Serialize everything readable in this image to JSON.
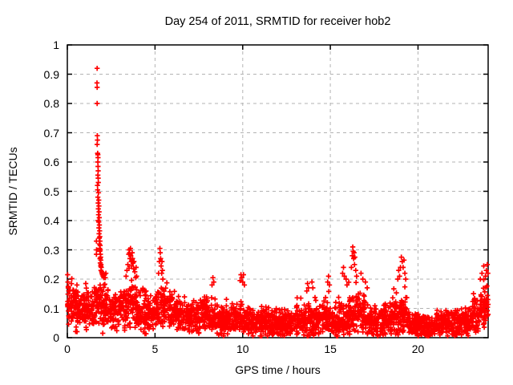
{
  "window": {
    "background": "#ffffff"
  },
  "chart_data": {
    "type": "scatter",
    "title": "Day 254 of 2011, SRMTID for receiver hob2",
    "xlabel": "GPS time / hours",
    "ylabel": "SRMTID / TECUs",
    "xlim": [
      0,
      24
    ],
    "ylim": [
      0,
      1
    ],
    "xticks": [
      0,
      5,
      10,
      15,
      20
    ],
    "yticks": [
      0,
      0.1,
      0.2,
      0.3,
      0.4,
      0.5,
      0.6,
      0.7,
      0.8,
      0.9,
      1
    ],
    "grid": {
      "show": true,
      "color": "#b3b3b3",
      "dash": "4 4"
    },
    "frame_color": "#000000",
    "marker": {
      "shape": "plus",
      "color": "#ff0000",
      "size": 7,
      "stroke_width": 1.7
    },
    "spike_points": [
      [
        1.66,
        0.33
      ],
      [
        1.67,
        0.3
      ],
      [
        1.7,
        0.92
      ],
      [
        1.69,
        0.87
      ],
      [
        1.7,
        0.855
      ],
      [
        1.7,
        0.8
      ],
      [
        1.71,
        0.69
      ],
      [
        1.72,
        0.675
      ],
      [
        1.7,
        0.66
      ],
      [
        1.73,
        0.63
      ],
      [
        1.74,
        0.625
      ],
      [
        1.75,
        0.615
      ],
      [
        1.74,
        0.6
      ],
      [
        1.75,
        0.585
      ],
      [
        1.76,
        0.57
      ],
      [
        1.74,
        0.555
      ],
      [
        1.76,
        0.545
      ],
      [
        1.77,
        0.53
      ],
      [
        1.72,
        0.52
      ],
      [
        1.73,
        0.505
      ],
      [
        1.78,
        0.495
      ],
      [
        1.74,
        0.48
      ],
      [
        1.79,
        0.47
      ],
      [
        1.76,
        0.46
      ],
      [
        1.8,
        0.45
      ],
      [
        1.77,
        0.44
      ],
      [
        1.81,
        0.43
      ],
      [
        1.78,
        0.42
      ],
      [
        1.82,
        0.41
      ],
      [
        1.76,
        0.4
      ],
      [
        1.79,
        0.395
      ],
      [
        1.83,
        0.385
      ],
      [
        1.8,
        0.375
      ],
      [
        1.84,
        0.365
      ],
      [
        1.81,
        0.355
      ],
      [
        1.85,
        0.345
      ],
      [
        1.82,
        0.34
      ],
      [
        1.86,
        0.33
      ],
      [
        1.83,
        0.32
      ],
      [
        1.87,
        0.315
      ],
      [
        1.84,
        0.305
      ],
      [
        1.88,
        0.3
      ],
      [
        1.85,
        0.295
      ],
      [
        1.89,
        0.285
      ],
      [
        1.66,
        0.285
      ],
      [
        1.9,
        0.275
      ],
      [
        1.86,
        0.27
      ],
      [
        1.91,
        0.265
      ],
      [
        1.88,
        0.255
      ],
      [
        1.92,
        0.25
      ],
      [
        1.9,
        0.245
      ],
      [
        1.94,
        0.24
      ],
      [
        1.92,
        0.23
      ],
      [
        1.96,
        0.225
      ],
      [
        1.98,
        0.22
      ],
      [
        2.0,
        0.215
      ],
      [
        2.04,
        0.21
      ],
      [
        2.08,
        0.205
      ],
      [
        2.12,
        0.215
      ],
      [
        2.16,
        0.205
      ],
      [
        2.2,
        0.22
      ],
      [
        2.02,
        0.015
      ],
      [
        0.02,
        0.215
      ],
      [
        0.03,
        0.19
      ],
      [
        0.05,
        0.175
      ],
      [
        0.08,
        0.16
      ],
      [
        0.55,
        0.18
      ],
      [
        1.05,
        0.185
      ],
      [
        3.35,
        0.21
      ],
      [
        3.4,
        0.23
      ],
      [
        3.45,
        0.25
      ],
      [
        3.5,
        0.285
      ],
      [
        3.52,
        0.3
      ],
      [
        3.55,
        0.29
      ],
      [
        3.57,
        0.27
      ],
      [
        3.6,
        0.305
      ],
      [
        3.62,
        0.28
      ],
      [
        3.65,
        0.26
      ],
      [
        3.67,
        0.245
      ],
      [
        3.7,
        0.29
      ],
      [
        3.72,
        0.27
      ],
      [
        3.75,
        0.255
      ],
      [
        3.78,
        0.235
      ],
      [
        3.8,
        0.26
      ],
      [
        3.85,
        0.225
      ],
      [
        3.9,
        0.205
      ],
      [
        3.92,
        0.24
      ],
      [
        3.95,
        0.21
      ],
      [
        5.2,
        0.22
      ],
      [
        5.25,
        0.26
      ],
      [
        5.28,
        0.305
      ],
      [
        5.3,
        0.29
      ],
      [
        5.32,
        0.27
      ],
      [
        5.35,
        0.245
      ],
      [
        5.38,
        0.22
      ],
      [
        5.4,
        0.26
      ],
      [
        5.42,
        0.23
      ],
      [
        5.45,
        0.2
      ],
      [
        8.25,
        0.18
      ],
      [
        8.3,
        0.205
      ],
      [
        8.35,
        0.19
      ],
      [
        9.85,
        0.195
      ],
      [
        9.9,
        0.215
      ],
      [
        9.95,
        0.205
      ],
      [
        10.0,
        0.19
      ],
      [
        10.05,
        0.215
      ],
      [
        10.1,
        0.18
      ],
      [
        13.7,
        0.185
      ],
      [
        13.75,
        0.17
      ],
      [
        13.95,
        0.19
      ],
      [
        14.0,
        0.17
      ],
      [
        14.85,
        0.19
      ],
      [
        14.9,
        0.21
      ],
      [
        14.95,
        0.18
      ],
      [
        15.7,
        0.22
      ],
      [
        15.75,
        0.24
      ],
      [
        15.8,
        0.21
      ],
      [
        15.9,
        0.2
      ],
      [
        15.95,
        0.18
      ],
      [
        16.2,
        0.24
      ],
      [
        16.25,
        0.28
      ],
      [
        16.28,
        0.31
      ],
      [
        16.3,
        0.295
      ],
      [
        16.33,
        0.27
      ],
      [
        16.35,
        0.29
      ],
      [
        16.38,
        0.25
      ],
      [
        16.4,
        0.275
      ],
      [
        16.45,
        0.23
      ],
      [
        16.5,
        0.21
      ],
      [
        16.75,
        0.22
      ],
      [
        16.85,
        0.2
      ],
      [
        17.0,
        0.19
      ],
      [
        17.1,
        0.17
      ],
      [
        18.85,
        0.2
      ],
      [
        18.9,
        0.23
      ],
      [
        18.95,
        0.21
      ],
      [
        19.0,
        0.24
      ],
      [
        19.05,
        0.275
      ],
      [
        19.1,
        0.26
      ],
      [
        19.15,
        0.24
      ],
      [
        19.2,
        0.265
      ],
      [
        19.25,
        0.22
      ],
      [
        19.3,
        0.2
      ],
      [
        23.55,
        0.2
      ],
      [
        23.65,
        0.22
      ],
      [
        23.75,
        0.245
      ],
      [
        23.85,
        0.21
      ],
      [
        23.9,
        0.23
      ],
      [
        23.95,
        0.25
      ],
      [
        23.98,
        0.22
      ],
      [
        4.35,
        0.02
      ],
      [
        11.3,
        0.012
      ],
      [
        12.6,
        0.015
      ],
      [
        16.1,
        0.012
      ],
      [
        20.6,
        0.015
      ]
    ],
    "baseline_cloud": {
      "seed": 254,
      "points_per_hour": 112,
      "bins": [
        [
          0.0,
          0.5,
          0.11,
          0.05,
          0.22
        ],
        [
          0.5,
          1.0,
          0.1,
          0.045,
          0.19
        ],
        [
          1.0,
          1.5,
          0.09,
          0.045,
          0.18
        ],
        [
          1.5,
          2.0,
          0.11,
          0.05,
          0.2
        ],
        [
          2.0,
          2.5,
          0.1,
          0.05,
          0.22
        ],
        [
          2.5,
          3.0,
          0.09,
          0.045,
          0.17
        ],
        [
          3.0,
          3.5,
          0.1,
          0.05,
          0.2
        ],
        [
          3.5,
          4.0,
          0.11,
          0.055,
          0.24
        ],
        [
          4.0,
          4.5,
          0.09,
          0.05,
          0.18
        ],
        [
          4.5,
          5.0,
          0.08,
          0.045,
          0.16
        ],
        [
          5.0,
          5.5,
          0.1,
          0.05,
          0.21
        ],
        [
          5.5,
          6.0,
          0.1,
          0.05,
          0.19
        ],
        [
          6.0,
          6.5,
          0.08,
          0.045,
          0.16
        ],
        [
          6.5,
          7.0,
          0.07,
          0.04,
          0.14
        ],
        [
          7.0,
          7.5,
          0.07,
          0.04,
          0.15
        ],
        [
          7.5,
          8.0,
          0.08,
          0.045,
          0.16
        ],
        [
          8.0,
          8.5,
          0.08,
          0.045,
          0.17
        ],
        [
          8.5,
          9.0,
          0.06,
          0.04,
          0.13
        ],
        [
          9.0,
          9.5,
          0.06,
          0.04,
          0.14
        ],
        [
          9.5,
          10.0,
          0.07,
          0.045,
          0.17
        ],
        [
          10.0,
          10.5,
          0.06,
          0.04,
          0.15
        ],
        [
          10.5,
          11.0,
          0.05,
          0.035,
          0.12
        ],
        [
          11.0,
          11.5,
          0.05,
          0.04,
          0.14
        ],
        [
          11.5,
          12.0,
          0.05,
          0.035,
          0.12
        ],
        [
          12.0,
          12.5,
          0.05,
          0.035,
          0.13
        ],
        [
          12.5,
          13.0,
          0.05,
          0.035,
          0.12
        ],
        [
          13.0,
          13.5,
          0.06,
          0.04,
          0.14
        ],
        [
          13.5,
          14.0,
          0.06,
          0.045,
          0.16
        ],
        [
          14.0,
          14.5,
          0.06,
          0.04,
          0.14
        ],
        [
          14.5,
          15.0,
          0.07,
          0.045,
          0.17
        ],
        [
          15.0,
          15.5,
          0.05,
          0.04,
          0.14
        ],
        [
          15.5,
          16.0,
          0.06,
          0.045,
          0.16
        ],
        [
          16.0,
          16.5,
          0.08,
          0.05,
          0.2
        ],
        [
          16.5,
          17.0,
          0.08,
          0.05,
          0.18
        ],
        [
          17.0,
          17.5,
          0.05,
          0.035,
          0.12
        ],
        [
          17.5,
          18.0,
          0.05,
          0.035,
          0.11
        ],
        [
          18.0,
          18.5,
          0.06,
          0.04,
          0.13
        ],
        [
          18.5,
          19.0,
          0.07,
          0.045,
          0.17
        ],
        [
          19.0,
          19.5,
          0.08,
          0.05,
          0.18
        ],
        [
          19.5,
          20.0,
          0.05,
          0.035,
          0.11
        ],
        [
          20.0,
          20.5,
          0.04,
          0.03,
          0.1
        ],
        [
          20.5,
          21.0,
          0.04,
          0.03,
          0.1
        ],
        [
          21.0,
          21.5,
          0.05,
          0.035,
          0.11
        ],
        [
          21.5,
          22.0,
          0.05,
          0.035,
          0.11
        ],
        [
          22.0,
          22.5,
          0.05,
          0.035,
          0.12
        ],
        [
          22.5,
          23.0,
          0.06,
          0.04,
          0.13
        ],
        [
          23.0,
          23.5,
          0.07,
          0.045,
          0.16
        ],
        [
          23.5,
          24.0,
          0.1,
          0.05,
          0.22
        ]
      ]
    }
  }
}
